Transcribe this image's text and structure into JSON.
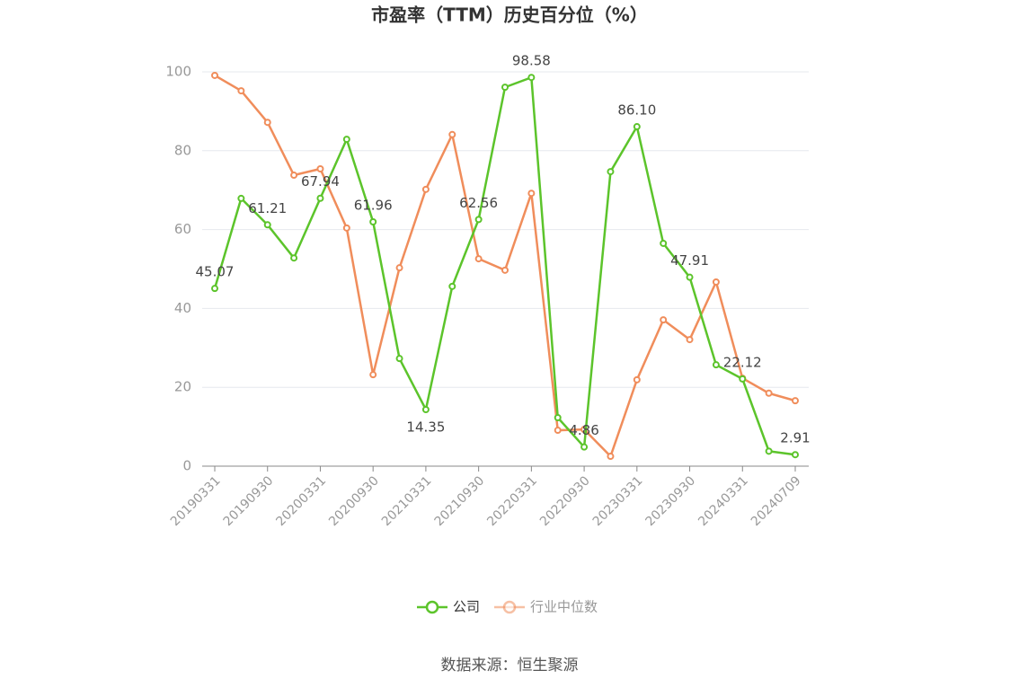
{
  "chart_data": {
    "type": "line",
    "title": "市盈率（TTM）历史百分位（%）",
    "source": "数据来源：恒生聚源",
    "categories": [
      "20190331",
      null,
      "20190930",
      null,
      "20200331",
      null,
      "20200930",
      null,
      "20210331",
      null,
      "20210930",
      null,
      "20220331",
      null,
      "20220930",
      null,
      "20230331",
      null,
      "20230930",
      null,
      "20240331",
      null,
      "20240709"
    ],
    "series": [
      {
        "name": "公司",
        "color": "#5cc42b",
        "values": [
          45.07,
          67.9,
          61.21,
          52.8,
          67.94,
          82.9,
          61.96,
          27.3,
          14.35,
          45.6,
          62.56,
          96.1,
          98.58,
          12.3,
          4.86,
          74.7,
          86.1,
          56.5,
          47.91,
          25.7,
          22.12,
          3.8,
          2.91
        ],
        "value_labels": [
          "45.07",
          null,
          "61.21",
          null,
          "67.94",
          null,
          "61.96",
          null,
          "14.35",
          null,
          "62.56",
          null,
          "98.58",
          null,
          "4.86",
          null,
          "86.10",
          null,
          "47.91",
          null,
          "22.12",
          null,
          "2.91"
        ]
      },
      {
        "name": "行业中位数",
        "color": "#f08d5b",
        "values": [
          99.1,
          95.2,
          87.2,
          73.8,
          75.4,
          60.4,
          23.2,
          50.3,
          70.2,
          84.1,
          52.6,
          49.7,
          69.2,
          9.1,
          9.3,
          2.5,
          21.9,
          37.1,
          32.1,
          46.7,
          22.3,
          18.5,
          16.6
        ]
      }
    ],
    "ylim": [
      0,
      100
    ],
    "yticks": [
      0,
      20,
      40,
      60,
      80,
      100
    ],
    "grid": true
  }
}
